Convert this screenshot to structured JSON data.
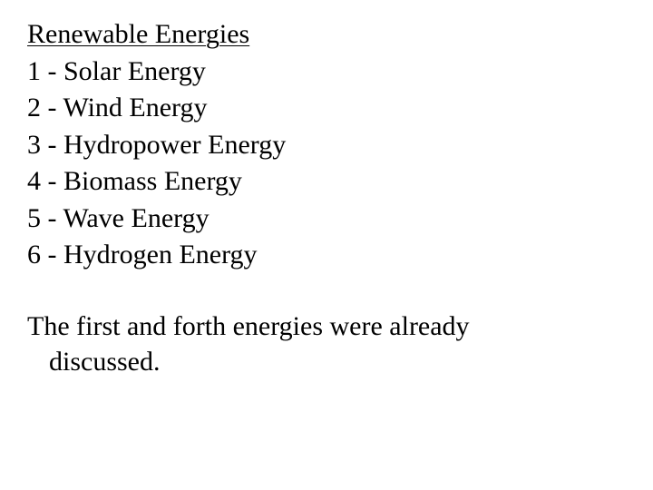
{
  "title": "Renewable Energies",
  "items": [
    "1 - Solar Energy",
    "2 - Wind Energy",
    "3 - Hydropower Energy",
    "4 - Biomass Energy",
    "5 - Wave Energy",
    "6 - Hydrogen Energy"
  ],
  "note_line1": "The first and forth energies were already",
  "note_line2": "discussed.",
  "styling": {
    "font_family": "Times New Roman",
    "font_size_pt": 22,
    "text_color": "#000000",
    "background_color": "#ffffff",
    "title_underlined": true
  }
}
